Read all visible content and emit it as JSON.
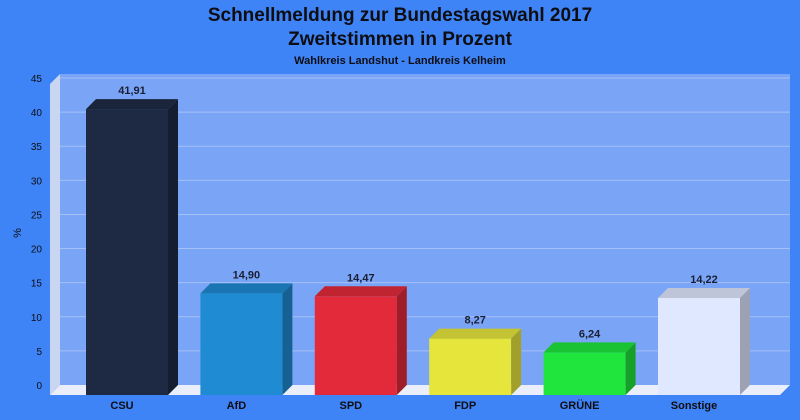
{
  "chart_data": {
    "type": "bar",
    "title": "Schnellmeldung zur Bundestagswahl 2017",
    "title_line2": "Zweitstimmen in Prozent",
    "subtitle": "Wahlkreis Landshut - Landkreis Kelheim",
    "ylabel": "%",
    "xlabel": "",
    "ylim": [
      0,
      45
    ],
    "yticks": [
      "0",
      "5",
      "10",
      "15",
      "20",
      "25",
      "30",
      "35",
      "40",
      "45"
    ],
    "grid": true,
    "categories": [
      "CSU",
      "AfD",
      "SPD",
      "FDP",
      "GRÜNE",
      "Sonstige"
    ],
    "values": [
      41.91,
      14.9,
      14.47,
      8.27,
      6.24,
      14.22
    ],
    "value_labels": [
      "41,91",
      "14,90",
      "14,47",
      "8,27",
      "6,24",
      "14,22"
    ],
    "colors": [
      "#1e2a44",
      "#1f8bd3",
      "#e22a3a",
      "#e5e53c",
      "#1fe53c",
      "#dfe8ff"
    ],
    "background": "#3f84f6",
    "plot_background": "#7aa5f7"
  }
}
